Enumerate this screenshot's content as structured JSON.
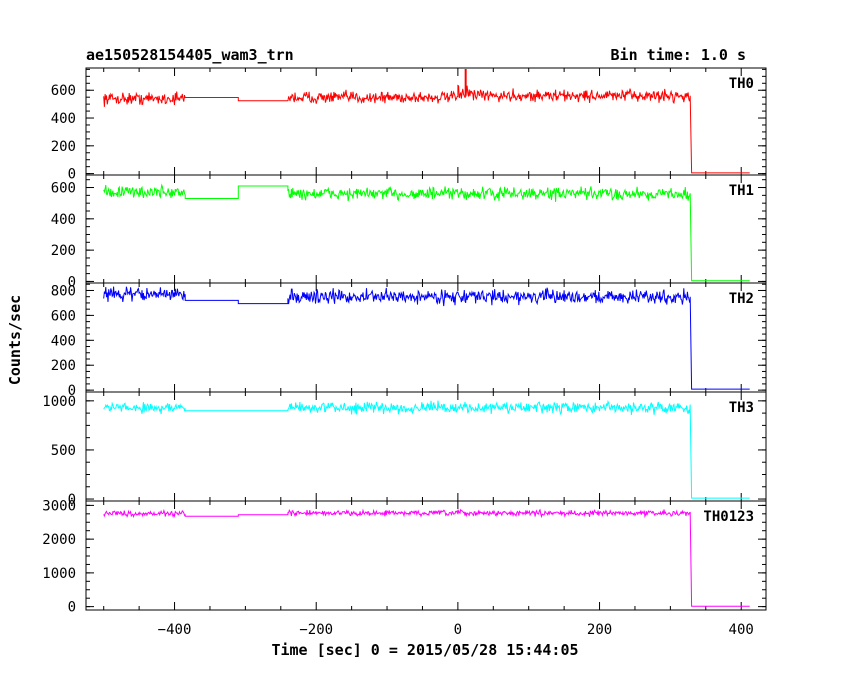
{
  "header": {
    "title": "ae150528154405_wam3_trn",
    "bin_time": "Bin time: 1.0 s"
  },
  "chart_data": {
    "type": "line",
    "title": "ae150528154405_wam3_trn",
    "xlabel": "Time [sec] 0 = 2015/05/28 15:44:05",
    "ylabel": "Counts/sec",
    "xlim": [
      -525,
      435
    ],
    "xticks": [
      -400,
      -200,
      0,
      200,
      400
    ],
    "xtick_labels": [
      "−400",
      "−200",
      "0",
      "200",
      "400"
    ],
    "grid": false,
    "panels": [
      {
        "name": "TH0",
        "color": "#ff0000",
        "ylim": [
          -10,
          760
        ],
        "yticks": [
          0,
          200,
          400,
          600
        ],
        "ytick_labels": [
          "0",
          "200",
          "400",
          "600"
        ],
        "noise": 30,
        "segments": [
          {
            "type": "noisy",
            "x": [
              -500,
              -385
            ],
            "y": 540
          },
          {
            "type": "flat",
            "x": [
              -385,
              -310
            ],
            "y": 548
          },
          {
            "type": "flat",
            "x": [
              -310,
              -240
            ],
            "y": 525
          },
          {
            "type": "noisy",
            "x": [
              -240,
              0
            ],
            "y": 548
          },
          {
            "type": "noisy",
            "x": [
              0,
              20
            ],
            "y": 580
          },
          {
            "type": "noisy",
            "x": [
              20,
              328
            ],
            "y": 560
          },
          {
            "type": "drop",
            "x": [
              328,
              330
            ],
            "y": [
              560,
              10
            ]
          },
          {
            "type": "flat",
            "x": [
              330,
              412
            ],
            "y": 5
          }
        ],
        "spike": {
          "x": 11,
          "y": 755
        }
      },
      {
        "name": "TH1",
        "color": "#00ff00",
        "ylim": [
          -10,
          680
        ],
        "yticks": [
          0,
          200,
          400,
          600
        ],
        "ytick_labels": [
          "0",
          "200",
          "400",
          "600"
        ],
        "noise": 28,
        "segments": [
          {
            "type": "noisy",
            "x": [
              -500,
              -385
            ],
            "y": 570
          },
          {
            "type": "flat",
            "x": [
              -385,
              -310
            ],
            "y": 530
          },
          {
            "type": "flat",
            "x": [
              -310,
              -240
            ],
            "y": 610
          },
          {
            "type": "noisy",
            "x": [
              -240,
              328
            ],
            "y": 560
          },
          {
            "type": "drop",
            "x": [
              328,
              330
            ],
            "y": [
              560,
              10
            ]
          },
          {
            "type": "flat",
            "x": [
              330,
              412
            ],
            "y": 5
          }
        ]
      },
      {
        "name": "TH2",
        "color": "#0000ff",
        "ylim": [
          -15,
          860
        ],
        "yticks": [
          0,
          200,
          400,
          600,
          800
        ],
        "ytick_labels": [
          "0",
          "200",
          "400",
          "600",
          "800"
        ],
        "noise": 38,
        "segments": [
          {
            "type": "noisy",
            "x": [
              -500,
              -385
            ],
            "y": 770
          },
          {
            "type": "flat",
            "x": [
              -385,
              -310
            ],
            "y": 720
          },
          {
            "type": "flat",
            "x": [
              -310,
              -240
            ],
            "y": 695
          },
          {
            "type": "noisy",
            "x": [
              -240,
              328
            ],
            "y": 750
          },
          {
            "type": "drop",
            "x": [
              328,
              330
            ],
            "y": [
              750,
              10
            ]
          },
          {
            "type": "flat",
            "x": [
              330,
              412
            ],
            "y": 8
          }
        ]
      },
      {
        "name": "TH3",
        "color": "#00ffff",
        "ylim": [
          -20,
          1090
        ],
        "yticks": [
          0,
          500,
          1000
        ],
        "ytick_labels": [
          "0",
          "500",
          "1000"
        ],
        "noise": 38,
        "segments": [
          {
            "type": "noisy",
            "x": [
              -500,
              -385
            ],
            "y": 930
          },
          {
            "type": "flat",
            "x": [
              -385,
              -240
            ],
            "y": 900
          },
          {
            "type": "noisy",
            "x": [
              -240,
              328
            ],
            "y": 930
          },
          {
            "type": "drop",
            "x": [
              328,
              330
            ],
            "y": [
              930,
              10
            ]
          },
          {
            "type": "flat",
            "x": [
              330,
              412
            ],
            "y": 10
          }
        ]
      },
      {
        "name": "TH0123",
        "color": "#ff00ff",
        "ylim": [
          -100,
          3130
        ],
        "yticks": [
          0,
          1000,
          2000,
          3000
        ],
        "ytick_labels": [
          "0",
          "1000",
          "2000",
          "3000"
        ],
        "noise": 55,
        "segments": [
          {
            "type": "noisy",
            "x": [
              -500,
              -385
            ],
            "y": 2760
          },
          {
            "type": "flat",
            "x": [
              -385,
              -310
            ],
            "y": 2680
          },
          {
            "type": "flat",
            "x": [
              -310,
              -240
            ],
            "y": 2720
          },
          {
            "type": "noisy",
            "x": [
              -240,
              328
            ],
            "y": 2770
          },
          {
            "type": "drop",
            "x": [
              328,
              330
            ],
            "y": [
              2770,
              10
            ]
          },
          {
            "type": "flat",
            "x": [
              330,
              412
            ],
            "y": 10
          }
        ]
      }
    ]
  }
}
